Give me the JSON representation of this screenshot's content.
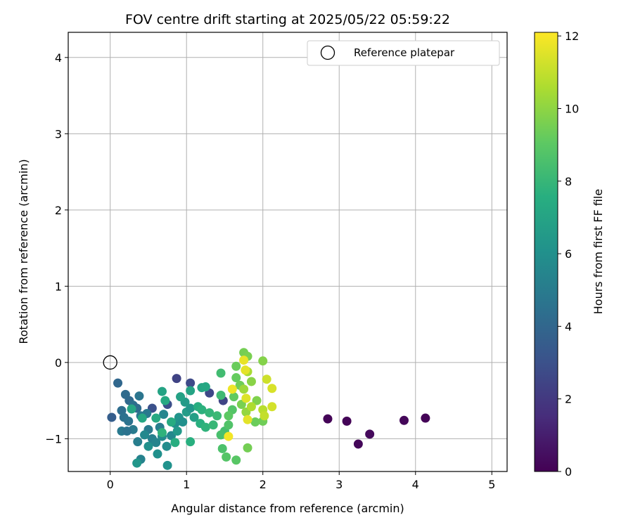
{
  "chart_data": {
    "type": "scatter",
    "title": "FOV centre drift starting at 2025/05/22 05:59:22",
    "xlabel": "Angular distance from reference (arcmin)",
    "ylabel": "Rotation from reference (arcmin)",
    "xlim": [
      -0.55,
      5.2
    ],
    "ylim": [
      -1.43,
      4.33
    ],
    "xticks": [
      0,
      1,
      2,
      3,
      4,
      5
    ],
    "yticks": [
      -1,
      0,
      1,
      2,
      3,
      4
    ],
    "grid": true,
    "legend": {
      "placement": "top-right",
      "entries": [
        "Reference platepar"
      ]
    },
    "reference_point": {
      "x": 0,
      "y": 0
    },
    "colorbar": {
      "label": "Hours from first FF file",
      "min": 0,
      "max": 12.1,
      "ticks": [
        0,
        2,
        4,
        6,
        8,
        10,
        12
      ],
      "colormap": "viridis"
    },
    "points": [
      {
        "x": 2.85,
        "y": -0.74,
        "c": 0.1
      },
      {
        "x": 3.1,
        "y": -0.77,
        "c": 0.1
      },
      {
        "x": 3.25,
        "y": -1.07,
        "c": 0.2
      },
      {
        "x": 3.4,
        "y": -0.94,
        "c": 0.3
      },
      {
        "x": 3.85,
        "y": -0.76,
        "c": 0.2
      },
      {
        "x": 4.13,
        "y": -0.73,
        "c": 0.1
      },
      {
        "x": 0.87,
        "y": -0.21,
        "c": 2.4
      },
      {
        "x": 1.05,
        "y": -0.27,
        "c": 2.7
      },
      {
        "x": 1.3,
        "y": -0.4,
        "c": 2.6
      },
      {
        "x": 1.48,
        "y": -0.5,
        "c": 2.5
      },
      {
        "x": 0.75,
        "y": -0.55,
        "c": 2.9
      },
      {
        "x": 0.55,
        "y": -0.6,
        "c": 3.0
      },
      {
        "x": 0.02,
        "y": -0.72,
        "c": 3.6
      },
      {
        "x": 0.1,
        "y": -0.27,
        "c": 4.0
      },
      {
        "x": 0.2,
        "y": -0.42,
        "c": 4.2
      },
      {
        "x": 0.25,
        "y": -0.5,
        "c": 4.1
      },
      {
        "x": 0.3,
        "y": -0.56,
        "c": 4.4
      },
      {
        "x": 0.15,
        "y": -0.63,
        "c": 4.3
      },
      {
        "x": 0.18,
        "y": -0.72,
        "c": 4.5
      },
      {
        "x": 0.24,
        "y": -0.77,
        "c": 4.6
      },
      {
        "x": 0.35,
        "y": -0.6,
        "c": 4.2
      },
      {
        "x": 0.38,
        "y": -0.44,
        "c": 4.7
      },
      {
        "x": 0.4,
        "y": -0.7,
        "c": 4.8
      },
      {
        "x": 0.15,
        "y": -0.9,
        "c": 4.9
      },
      {
        "x": 0.3,
        "y": -0.88,
        "c": 5.0
      },
      {
        "x": 0.22,
        "y": -0.9,
        "c": 4.6
      },
      {
        "x": 0.48,
        "y": -0.67,
        "c": 4.9
      },
      {
        "x": 0.36,
        "y": -1.04,
        "c": 5.1
      },
      {
        "x": 0.4,
        "y": -1.27,
        "c": 5.3
      },
      {
        "x": 0.5,
        "y": -0.88,
        "c": 5.0
      },
      {
        "x": 0.55,
        "y": -1.0,
        "c": 5.2
      },
      {
        "x": 0.6,
        "y": -1.05,
        "c": 5.4
      },
      {
        "x": 0.45,
        "y": -0.95,
        "c": 5.6
      },
      {
        "x": 0.65,
        "y": -0.85,
        "c": 5.1
      },
      {
        "x": 0.7,
        "y": -0.68,
        "c": 5.5
      },
      {
        "x": 0.68,
        "y": -0.97,
        "c": 5.7
      },
      {
        "x": 0.74,
        "y": -1.1,
        "c": 5.8
      },
      {
        "x": 0.8,
        "y": -0.96,
        "c": 5.6
      },
      {
        "x": 0.62,
        "y": -1.2,
        "c": 6.0
      },
      {
        "x": 0.75,
        "y": -1.35,
        "c": 6.1
      },
      {
        "x": 0.5,
        "y": -1.1,
        "c": 6.0
      },
      {
        "x": 0.35,
        "y": -1.32,
        "c": 6.3
      },
      {
        "x": 0.85,
        "y": -0.8,
        "c": 5.9
      },
      {
        "x": 0.9,
        "y": -0.72,
        "c": 6.2
      },
      {
        "x": 0.95,
        "y": -0.78,
        "c": 6.0
      },
      {
        "x": 0.88,
        "y": -0.9,
        "c": 6.4
      },
      {
        "x": 1.0,
        "y": -0.65,
        "c": 6.6
      },
      {
        "x": 1.05,
        "y": -0.6,
        "c": 6.3
      },
      {
        "x": 1.1,
        "y": -0.72,
        "c": 6.8
      },
      {
        "x": 0.98,
        "y": -0.52,
        "c": 6.5
      },
      {
        "x": 0.92,
        "y": -0.45,
        "c": 6.9
      },
      {
        "x": 1.05,
        "y": -0.37,
        "c": 7.0
      },
      {
        "x": 1.2,
        "y": -0.33,
        "c": 7.1
      },
      {
        "x": 1.25,
        "y": -0.32,
        "c": 7.2
      },
      {
        "x": 0.68,
        "y": -0.38,
        "c": 7.0
      },
      {
        "x": 0.72,
        "y": -0.5,
        "c": 7.3
      },
      {
        "x": 0.8,
        "y": -0.78,
        "c": 7.4
      },
      {
        "x": 0.85,
        "y": -1.05,
        "c": 7.5
      },
      {
        "x": 1.05,
        "y": -1.04,
        "c": 7.6
      },
      {
        "x": 0.6,
        "y": -0.73,
        "c": 7.3
      },
      {
        "x": 0.42,
        "y": -0.73,
        "c": 7.2
      },
      {
        "x": 0.28,
        "y": -0.61,
        "c": 7.1
      },
      {
        "x": 0.68,
        "y": -0.92,
        "c": 7.8
      },
      {
        "x": 1.15,
        "y": -0.58,
        "c": 7.5
      },
      {
        "x": 1.2,
        "y": -0.62,
        "c": 7.7
      },
      {
        "x": 1.3,
        "y": -0.66,
        "c": 7.9
      },
      {
        "x": 1.18,
        "y": -0.8,
        "c": 7.6
      },
      {
        "x": 1.25,
        "y": -0.85,
        "c": 7.8
      },
      {
        "x": 1.35,
        "y": -0.82,
        "c": 8.0
      },
      {
        "x": 1.4,
        "y": -0.7,
        "c": 8.1
      },
      {
        "x": 1.45,
        "y": -0.43,
        "c": 8.2
      },
      {
        "x": 1.45,
        "y": -0.14,
        "c": 8.3
      },
      {
        "x": 1.5,
        "y": -0.9,
        "c": 8.4
      },
      {
        "x": 1.45,
        "y": -0.95,
        "c": 8.5
      },
      {
        "x": 1.47,
        "y": -1.13,
        "c": 8.6
      },
      {
        "x": 1.52,
        "y": -1.24,
        "c": 8.8
      },
      {
        "x": 1.65,
        "y": -1.28,
        "c": 8.9
      },
      {
        "x": 1.55,
        "y": -0.82,
        "c": 8.7
      },
      {
        "x": 1.6,
        "y": -0.62,
        "c": 8.8
      },
      {
        "x": 1.55,
        "y": -0.7,
        "c": 9.0
      },
      {
        "x": 1.62,
        "y": -0.45,
        "c": 9.1
      },
      {
        "x": 1.65,
        "y": -0.2,
        "c": 9.2
      },
      {
        "x": 1.65,
        "y": -0.05,
        "c": 9.3
      },
      {
        "x": 1.75,
        "y": 0.13,
        "c": 9.5
      },
      {
        "x": 1.8,
        "y": 0.08,
        "c": 9.6
      },
      {
        "x": 1.7,
        "y": -0.3,
        "c": 9.4
      },
      {
        "x": 1.72,
        "y": -0.55,
        "c": 9.6
      },
      {
        "x": 1.8,
        "y": -1.12,
        "c": 9.5
      },
      {
        "x": 1.9,
        "y": -0.78,
        "c": 9.3
      },
      {
        "x": 2.0,
        "y": -0.77,
        "c": 9.4
      },
      {
        "x": 1.92,
        "y": -0.5,
        "c": 9.7
      },
      {
        "x": 2.0,
        "y": 0.02,
        "c": 9.8
      },
      {
        "x": 1.85,
        "y": -0.25,
        "c": 9.9
      },
      {
        "x": 1.78,
        "y": -0.65,
        "c": 10.1
      },
      {
        "x": 1.75,
        "y": -0.35,
        "c": 10.3
      },
      {
        "x": 1.8,
        "y": -0.12,
        "c": 10.5
      },
      {
        "x": 1.85,
        "y": -0.58,
        "c": 10.6
      },
      {
        "x": 2.0,
        "y": -0.62,
        "c": 10.8
      },
      {
        "x": 2.02,
        "y": -0.7,
        "c": 11.0
      },
      {
        "x": 2.05,
        "y": -0.22,
        "c": 11.2
      },
      {
        "x": 2.12,
        "y": -0.34,
        "c": 11.4
      },
      {
        "x": 2.12,
        "y": -0.58,
        "c": 11.3
      },
      {
        "x": 1.78,
        "y": -0.47,
        "c": 11.5
      },
      {
        "x": 1.8,
        "y": -0.75,
        "c": 11.6
      },
      {
        "x": 1.75,
        "y": 0.03,
        "c": 11.7
      },
      {
        "x": 1.77,
        "y": -0.1,
        "c": 11.6
      },
      {
        "x": 1.55,
        "y": -0.97,
        "c": 11.9
      },
      {
        "x": 1.6,
        "y": -0.35,
        "c": 11.8
      }
    ]
  }
}
